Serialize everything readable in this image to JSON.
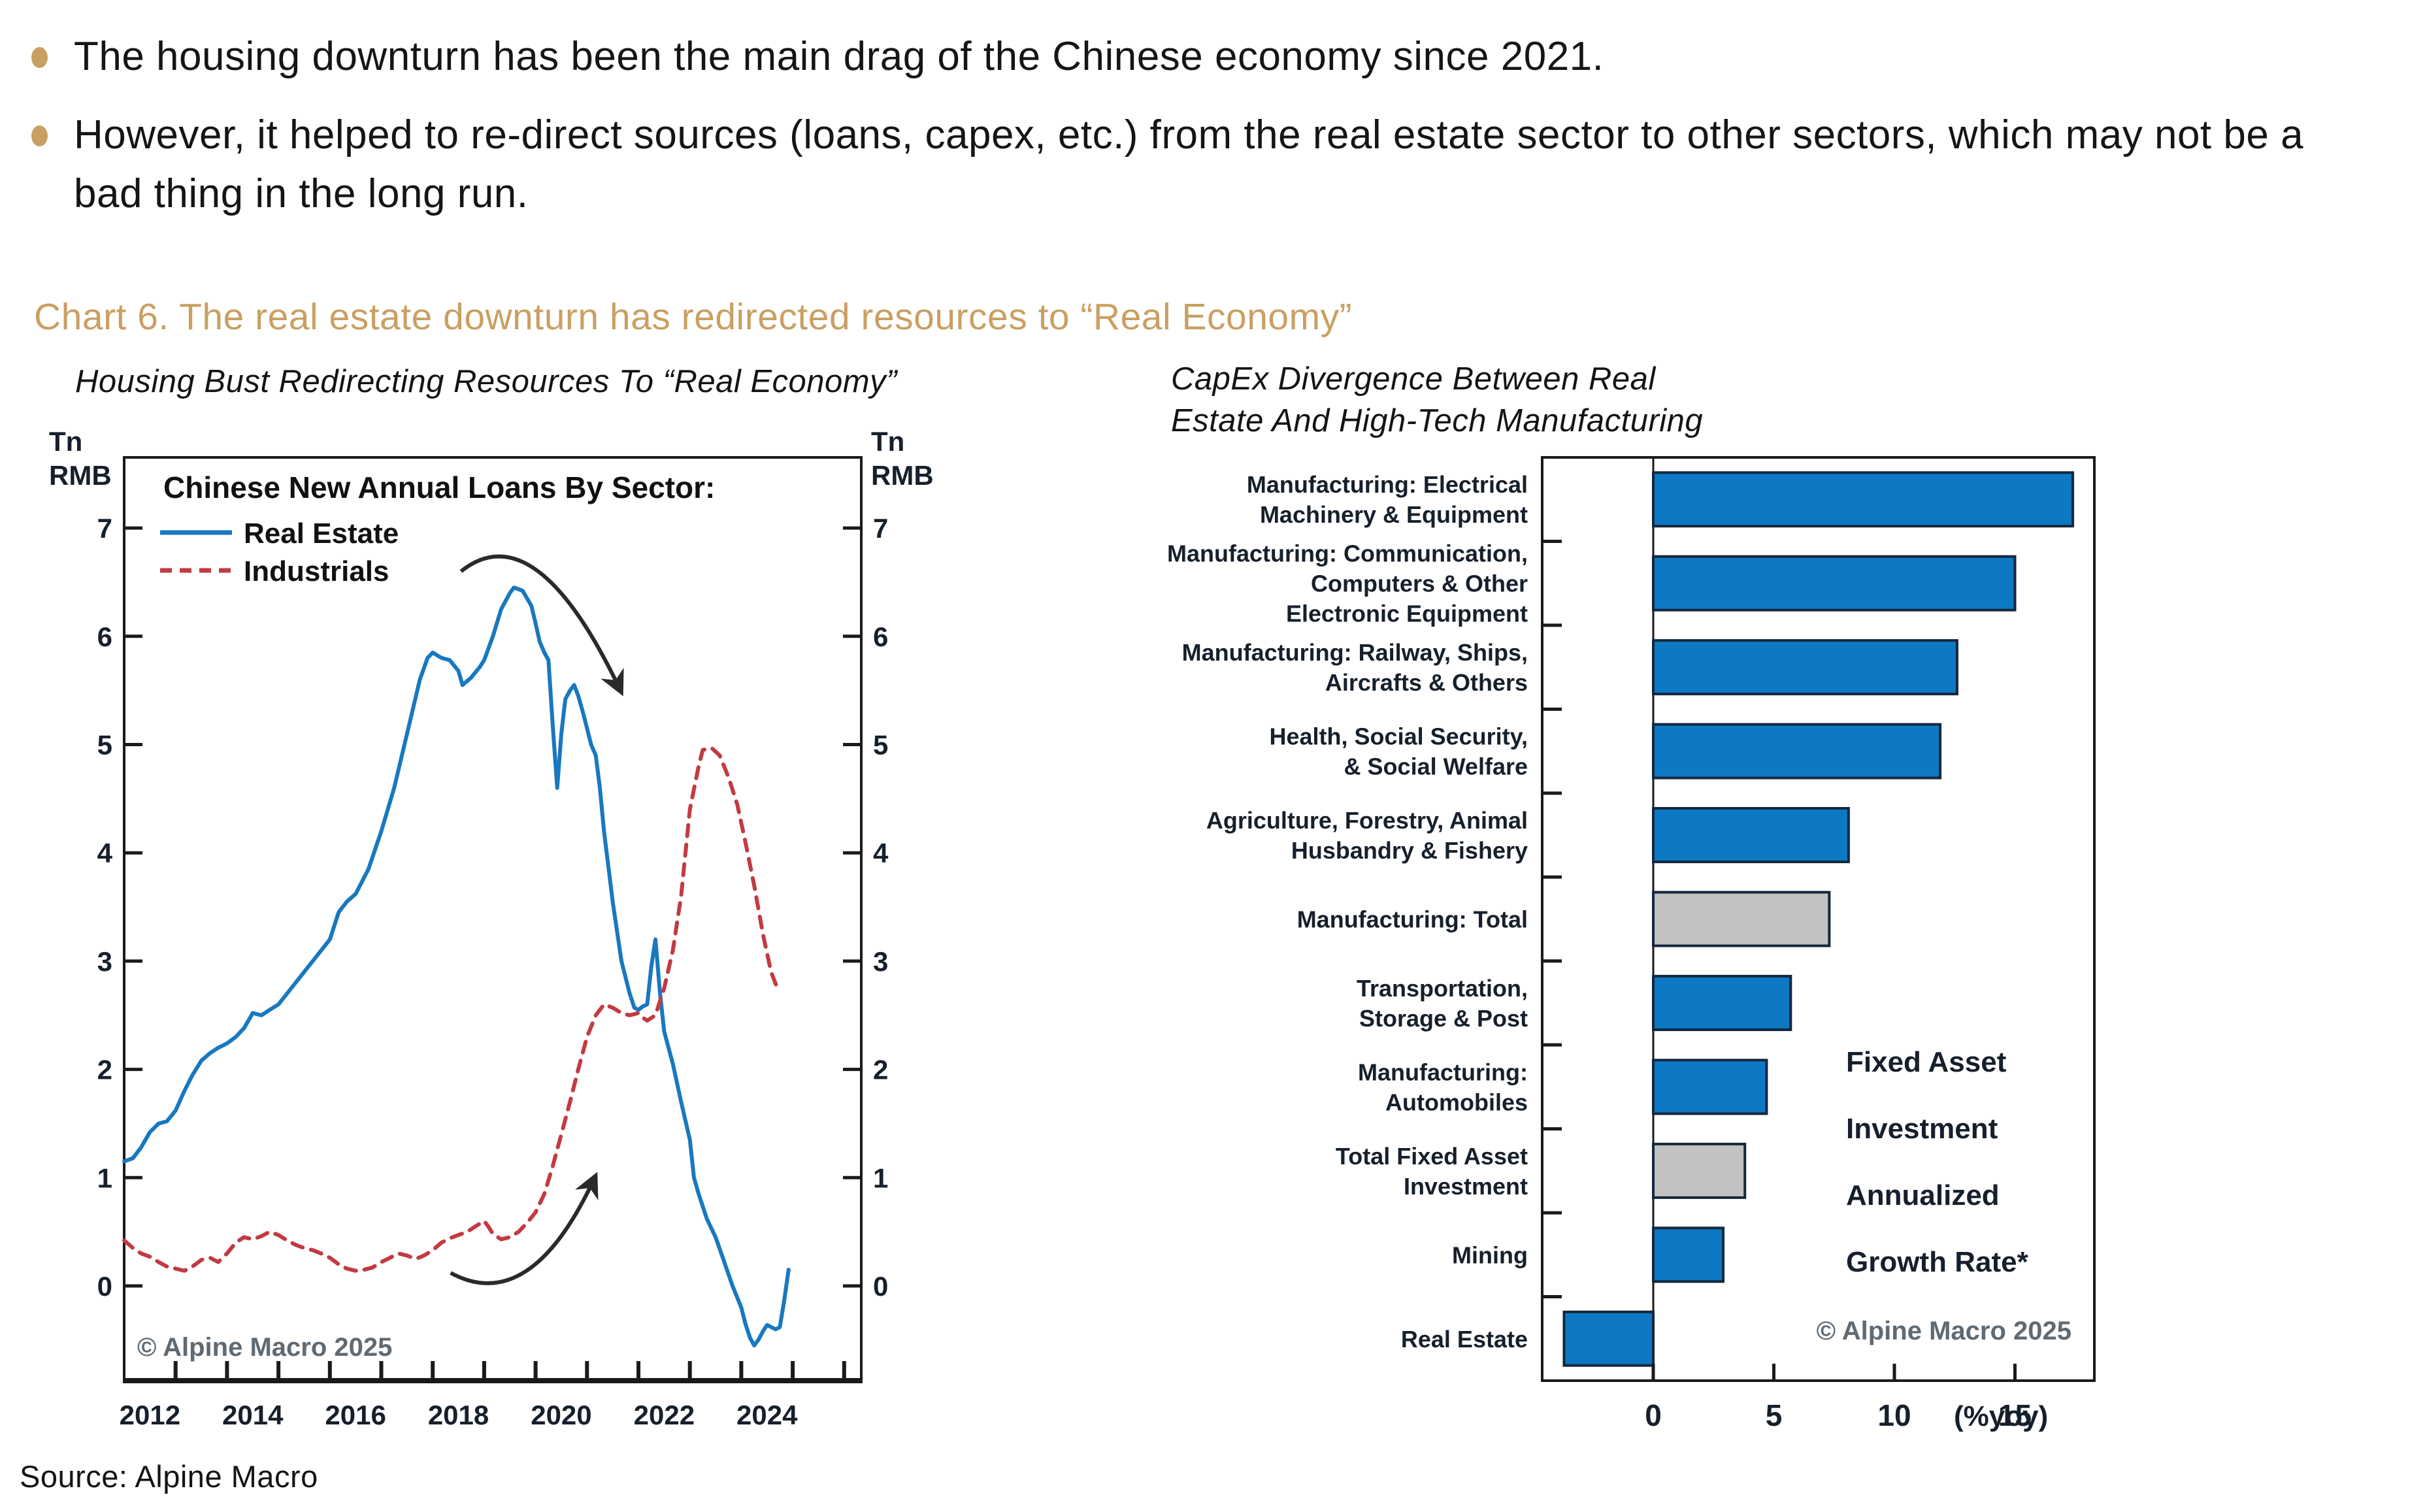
{
  "slide": {
    "source_note": "Source: Alpine Macro"
  },
  "colors": {
    "accent_gold": "#c9a063",
    "line_blue": "#1878c0",
    "bar_blue": "#0d78c3",
    "line_red": "#c23b42",
    "bar_gray": "#c2c2c2",
    "text_dark": "#16202c",
    "copyright_gray": "#5f6a73"
  },
  "bullets": {
    "items": [
      {
        "text": "The housing downturn has been the main drag of the Chinese economy since 2021."
      },
      {
        "text": "However, it helped to re-direct sources (loans, capex, etc.) from the real estate sector to other sectors, which may not be a bad thing in the long run."
      }
    ]
  },
  "section": {
    "title": "Chart 6. The real estate downturn has redirected resources to “Real Economy”"
  },
  "charts": {
    "left": {
      "subtitle": "Housing Bust Redirecting Resources To “Real Economy”",
      "unit_label": "Tn RMB",
      "legend_title": "Chinese New Annual Loans By Sector:",
      "copyright": "© Alpine Macro 2025",
      "x_tick_label_years": [
        2012,
        2014,
        2016,
        2018,
        2020,
        2022,
        2024
      ],
      "y_tick_values": [
        0,
        1,
        2,
        3,
        4,
        5,
        6,
        7
      ]
    },
    "right": {
      "subtitle_lines": [
        "CapEx Divergence Between Real",
        "Estate And High-Tech Manufacturing"
      ],
      "annotation_lines": [
        "Fixed Asset",
        "Investment",
        "Annualized",
        "Growth Rate*"
      ],
      "copyright": "© Alpine Macro 2025",
      "x_tick_values": [
        0,
        5,
        10,
        15
      ],
      "x_axis_unit": "(%yoy)"
    }
  },
  "chart_data": [
    {
      "type": "line",
      "title": "Chinese New Annual Loans By Sector:",
      "ylabel": "Tn RMB",
      "xlabel": "",
      "x_ticks_minor_years": [
        2013,
        2014,
        2015,
        2016,
        2017,
        2018,
        2019,
        2020,
        2021,
        2022,
        2023,
        2024,
        2025,
        2026
      ],
      "xlim": [
        2012,
        2026.33
      ],
      "ylim": [
        -0.88,
        7.65
      ],
      "grid": false,
      "legend_position": "top-left",
      "series": [
        {
          "name": "Real Estate",
          "style": "solid",
          "color": "#1878c0",
          "points": [
            [
              2012.0,
              1.15
            ],
            [
              2012.17,
              1.18
            ],
            [
              2012.33,
              1.28
            ],
            [
              2012.5,
              1.42
            ],
            [
              2012.67,
              1.5
            ],
            [
              2012.83,
              1.52
            ],
            [
              2013.0,
              1.62
            ],
            [
              2013.17,
              1.8
            ],
            [
              2013.33,
              1.95
            ],
            [
              2013.5,
              2.08
            ],
            [
              2013.67,
              2.15
            ],
            [
              2013.83,
              2.2
            ],
            [
              2014.0,
              2.24
            ],
            [
              2014.17,
              2.3
            ],
            [
              2014.33,
              2.38
            ],
            [
              2014.5,
              2.52
            ],
            [
              2014.67,
              2.5
            ],
            [
              2014.83,
              2.55
            ],
            [
              2015.0,
              2.6
            ],
            [
              2015.25,
              2.75
            ],
            [
              2015.5,
              2.9
            ],
            [
              2015.75,
              3.05
            ],
            [
              2016.0,
              3.2
            ],
            [
              2016.17,
              3.45
            ],
            [
              2016.33,
              3.55
            ],
            [
              2016.5,
              3.62
            ],
            [
              2016.75,
              3.85
            ],
            [
              2017.0,
              4.2
            ],
            [
              2017.25,
              4.6
            ],
            [
              2017.5,
              5.1
            ],
            [
              2017.75,
              5.6
            ],
            [
              2017.9,
              5.8
            ],
            [
              2018.0,
              5.85
            ],
            [
              2018.17,
              5.8
            ],
            [
              2018.33,
              5.78
            ],
            [
              2018.5,
              5.68
            ],
            [
              2018.58,
              5.55
            ],
            [
              2018.75,
              5.62
            ],
            [
              2018.92,
              5.72
            ],
            [
              2019.0,
              5.78
            ],
            [
              2019.17,
              6.0
            ],
            [
              2019.33,
              6.25
            ],
            [
              2019.5,
              6.4
            ],
            [
              2019.58,
              6.45
            ],
            [
              2019.75,
              6.42
            ],
            [
              2019.92,
              6.28
            ],
            [
              2020.0,
              6.12
            ],
            [
              2020.08,
              5.95
            ],
            [
              2020.17,
              5.85
            ],
            [
              2020.25,
              5.78
            ],
            [
              2020.33,
              5.2
            ],
            [
              2020.42,
              4.6
            ],
            [
              2020.5,
              5.1
            ],
            [
              2020.58,
              5.42
            ],
            [
              2020.67,
              5.5
            ],
            [
              2020.75,
              5.55
            ],
            [
              2020.83,
              5.45
            ],
            [
              2020.92,
              5.3
            ],
            [
              2021.0,
              5.15
            ],
            [
              2021.08,
              5.0
            ],
            [
              2021.17,
              4.9
            ],
            [
              2021.25,
              4.6
            ],
            [
              2021.33,
              4.2
            ],
            [
              2021.5,
              3.55
            ],
            [
              2021.67,
              3.0
            ],
            [
              2021.83,
              2.7
            ],
            [
              2021.92,
              2.57
            ],
            [
              2022.0,
              2.55
            ],
            [
              2022.08,
              2.58
            ],
            [
              2022.17,
              2.6
            ],
            [
              2022.25,
              2.95
            ],
            [
              2022.33,
              3.2
            ],
            [
              2022.42,
              2.7
            ],
            [
              2022.5,
              2.35
            ],
            [
              2022.67,
              2.05
            ],
            [
              2022.83,
              1.7
            ],
            [
              2023.0,
              1.35
            ],
            [
              2023.08,
              1.0
            ],
            [
              2023.17,
              0.85
            ],
            [
              2023.33,
              0.62
            ],
            [
              2023.5,
              0.45
            ],
            [
              2023.67,
              0.22
            ],
            [
              2023.83,
              0.0
            ],
            [
              2024.0,
              -0.2
            ],
            [
              2024.08,
              -0.35
            ],
            [
              2024.17,
              -0.48
            ],
            [
              2024.25,
              -0.55
            ],
            [
              2024.33,
              -0.5
            ],
            [
              2024.42,
              -0.42
            ],
            [
              2024.5,
              -0.36
            ],
            [
              2024.58,
              -0.38
            ],
            [
              2024.67,
              -0.4
            ],
            [
              2024.75,
              -0.38
            ],
            [
              2024.83,
              -0.15
            ],
            [
              2024.92,
              0.15
            ]
          ]
        },
        {
          "name": "Industrials",
          "style": "dashed",
          "color": "#c23b42",
          "points": [
            [
              2012.0,
              0.42
            ],
            [
              2012.17,
              0.35
            ],
            [
              2012.33,
              0.3
            ],
            [
              2012.5,
              0.27
            ],
            [
              2012.67,
              0.22
            ],
            [
              2012.83,
              0.18
            ],
            [
              2013.0,
              0.16
            ],
            [
              2013.17,
              0.14
            ],
            [
              2013.33,
              0.18
            ],
            [
              2013.5,
              0.24
            ],
            [
              2013.67,
              0.26
            ],
            [
              2013.83,
              0.22
            ],
            [
              2014.0,
              0.3
            ],
            [
              2014.17,
              0.4
            ],
            [
              2014.33,
              0.45
            ],
            [
              2014.5,
              0.43
            ],
            [
              2014.67,
              0.46
            ],
            [
              2014.83,
              0.5
            ],
            [
              2015.0,
              0.47
            ],
            [
              2015.17,
              0.42
            ],
            [
              2015.33,
              0.38
            ],
            [
              2015.5,
              0.35
            ],
            [
              2015.67,
              0.33
            ],
            [
              2015.83,
              0.3
            ],
            [
              2016.0,
              0.26
            ],
            [
              2016.17,
              0.2
            ],
            [
              2016.33,
              0.16
            ],
            [
              2016.5,
              0.14
            ],
            [
              2016.67,
              0.15
            ],
            [
              2016.83,
              0.17
            ],
            [
              2017.0,
              0.22
            ],
            [
              2017.17,
              0.26
            ],
            [
              2017.33,
              0.3
            ],
            [
              2017.5,
              0.28
            ],
            [
              2017.67,
              0.25
            ],
            [
              2017.83,
              0.28
            ],
            [
              2018.0,
              0.33
            ],
            [
              2018.17,
              0.4
            ],
            [
              2018.33,
              0.44
            ],
            [
              2018.5,
              0.47
            ],
            [
              2018.67,
              0.5
            ],
            [
              2018.83,
              0.55
            ],
            [
              2019.0,
              0.6
            ],
            [
              2019.08,
              0.55
            ],
            [
              2019.17,
              0.48
            ],
            [
              2019.33,
              0.43
            ],
            [
              2019.5,
              0.45
            ],
            [
              2019.67,
              0.5
            ],
            [
              2019.83,
              0.58
            ],
            [
              2020.0,
              0.68
            ],
            [
              2020.17,
              0.85
            ],
            [
              2020.33,
              1.1
            ],
            [
              2020.5,
              1.4
            ],
            [
              2020.67,
              1.7
            ],
            [
              2020.83,
              2.0
            ],
            [
              2021.0,
              2.3
            ],
            [
              2021.17,
              2.5
            ],
            [
              2021.33,
              2.6
            ],
            [
              2021.5,
              2.57
            ],
            [
              2021.67,
              2.52
            ],
            [
              2021.83,
              2.5
            ],
            [
              2022.0,
              2.52
            ],
            [
              2022.08,
              2.48
            ],
            [
              2022.17,
              2.45
            ],
            [
              2022.33,
              2.5
            ],
            [
              2022.5,
              2.75
            ],
            [
              2022.67,
              3.1
            ],
            [
              2022.83,
              3.6
            ],
            [
              2023.0,
              4.4
            ],
            [
              2023.17,
              4.8
            ],
            [
              2023.25,
              4.95
            ],
            [
              2023.42,
              4.97
            ],
            [
              2023.58,
              4.9
            ],
            [
              2023.75,
              4.7
            ],
            [
              2023.92,
              4.45
            ],
            [
              2024.08,
              4.1
            ],
            [
              2024.25,
              3.7
            ],
            [
              2024.42,
              3.25
            ],
            [
              2024.58,
              2.9
            ],
            [
              2024.7,
              2.75
            ]
          ]
        }
      ],
      "arrow_annotations": [
        {
          "name": "loans-down-arrow",
          "from": [
            2018.55,
            6.6
          ],
          "ctrl": [
            2020.0,
            7.15
          ],
          "to": [
            2021.65,
            5.5
          ]
        },
        {
          "name": "loans-up-arrow",
          "from": [
            2018.35,
            0.12
          ],
          "ctrl": [
            2019.9,
            -0.28
          ],
          "to": [
            2021.15,
            1.0
          ]
        }
      ]
    },
    {
      "type": "bar",
      "orientation": "horizontal",
      "xlabel": "(%yoy)",
      "xlim": [
        -4.6,
        18.3
      ],
      "xticks": [
        0,
        5,
        10,
        15
      ],
      "note": "Fixed Asset Investment Annualized Growth Rate*",
      "bars": [
        {
          "label_lines": [
            "Manufacturing: Electrical",
            "Machinery & Equipment"
          ],
          "value": 17.4,
          "color": "#0d78c3"
        },
        {
          "label_lines": [
            "Manufacturing: Communication,",
            "Computers & Other",
            "Electronic Equipment"
          ],
          "value": 15.0,
          "color": "#0d78c3"
        },
        {
          "label_lines": [
            "Manufacturing: Railway, Ships,",
            "Aircrafts & Others"
          ],
          "value": 12.6,
          "color": "#0d78c3"
        },
        {
          "label_lines": [
            "Health, Social Security,",
            "& Social Welfare"
          ],
          "value": 11.9,
          "color": "#0d78c3"
        },
        {
          "label_lines": [
            "Agriculture, Forestry, Animal",
            "Husbandry & Fishery"
          ],
          "value": 8.1,
          "color": "#0d78c3"
        },
        {
          "label_lines": [
            "Manufacturing: Total"
          ],
          "value": 7.3,
          "color": "#c2c2c2"
        },
        {
          "label_lines": [
            "Transportation,",
            "Storage & Post"
          ],
          "value": 5.7,
          "color": "#0d78c3"
        },
        {
          "label_lines": [
            "Manufacturing:",
            "Automobiles"
          ],
          "value": 4.7,
          "color": "#0d78c3"
        },
        {
          "label_lines": [
            "Total Fixed Asset",
            "Investment"
          ],
          "value": 3.8,
          "color": "#c2c2c2"
        },
        {
          "label_lines": [
            "Mining"
          ],
          "value": 2.9,
          "color": "#0d78c3"
        },
        {
          "label_lines": [
            "Real Estate"
          ],
          "value": -3.7,
          "color": "#0d78c3"
        }
      ]
    }
  ]
}
